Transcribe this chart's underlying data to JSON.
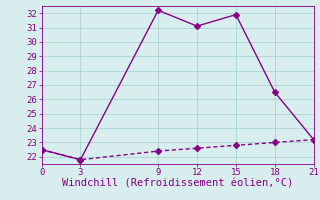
{
  "line1_x": [
    0,
    3,
    9,
    12,
    15,
    18,
    21
  ],
  "line1_y": [
    22.5,
    21.8,
    32.2,
    31.1,
    31.9,
    26.5,
    23.2
  ],
  "line2_x": [
    0,
    3,
    9,
    12,
    15,
    18,
    21
  ],
  "line2_y": [
    22.5,
    21.8,
    22.4,
    22.6,
    22.8,
    23.0,
    23.2
  ],
  "line_color": "#880088",
  "bg_color": "#d8eeee",
  "grid_color": "#aad4d4",
  "xlabel": "Windchill (Refroidissement éolien,°C)",
  "xlim": [
    0,
    21
  ],
  "ylim": [
    21.5,
    32.5
  ],
  "xticks": [
    0,
    3,
    9,
    12,
    15,
    18,
    21
  ],
  "yticks": [
    22,
    23,
    24,
    25,
    26,
    27,
    28,
    29,
    30,
    31,
    32
  ],
  "xlabel_fontsize": 7.5,
  "tick_fontsize": 6.5,
  "line_width": 1.0,
  "marker_size": 3.0
}
